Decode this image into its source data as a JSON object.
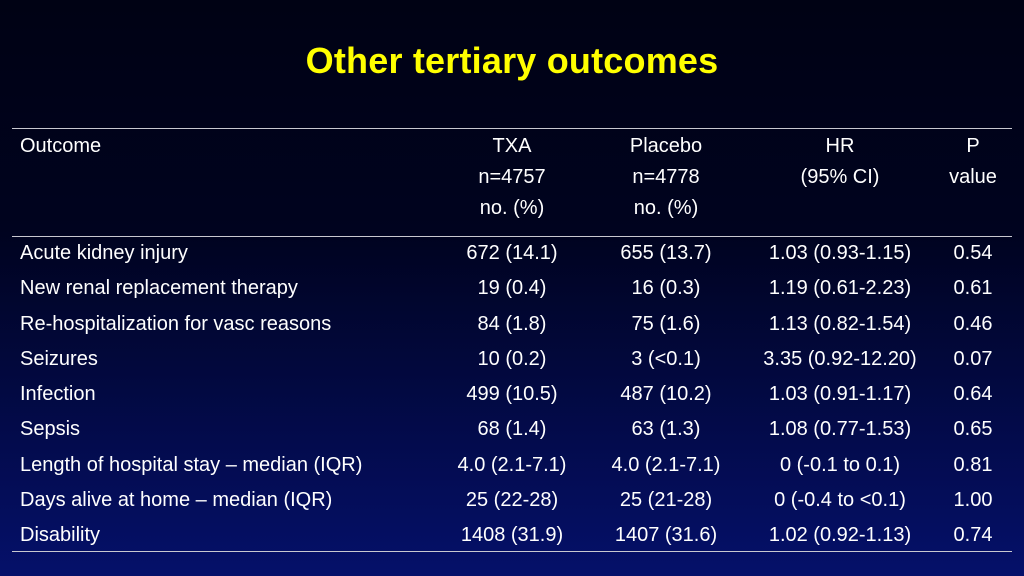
{
  "slide": {
    "title": "Other tertiary outcomes"
  },
  "table": {
    "headers": {
      "outcome": [
        "Outcome"
      ],
      "txa": [
        "TXA",
        "n=4757",
        "no. (%)"
      ],
      "placebo": [
        "Placebo",
        "n=4778",
        "no. (%)"
      ],
      "hr": [
        "HR",
        "(95% CI)"
      ],
      "p": [
        "P",
        "value"
      ]
    },
    "rows": [
      {
        "outcome": "Acute kidney injury",
        "txa": "672 (14.1)",
        "placebo": "655 (13.7)",
        "hr": "1.03 (0.93-1.15)",
        "p": "0.54"
      },
      {
        "outcome": "New renal replacement therapy",
        "txa": "19 (0.4)",
        "placebo": "16 (0.3)",
        "hr": "1.19 (0.61-2.23)",
        "p": "0.61"
      },
      {
        "outcome": "Re-hospitalization for vasc reasons",
        "txa": "84 (1.8)",
        "placebo": "75 (1.6)",
        "hr": "1.13 (0.82-1.54)",
        "p": "0.46"
      },
      {
        "outcome": "Seizures",
        "txa": "10 (0.2)",
        "placebo": "3 (<0.1)",
        "hr": "3.35 (0.92-12.20)",
        "p": "0.07"
      },
      {
        "outcome": "Infection",
        "txa": "499 (10.5)",
        "placebo": "487 (10.2)",
        "hr": "1.03 (0.91-1.17)",
        "p": "0.64"
      },
      {
        "outcome": "Sepsis",
        "txa": "68 (1.4)",
        "placebo": "63 (1.3)",
        "hr": "1.08 (0.77-1.53)",
        "p": "0.65"
      },
      {
        "outcome": "Length of hospital stay – median (IQR)",
        "txa": "4.0 (2.1-7.1)",
        "placebo": "4.0 (2.1-7.1)",
        "hr": "0 (-0.1 to 0.1)",
        "p": "0.81"
      },
      {
        "outcome": "Days alive at home – median (IQR)",
        "txa": "25 (22-28)",
        "placebo": "25 (21-28)",
        "hr": "0 (-0.4 to <0.1)",
        "p": "1.00"
      },
      {
        "outcome": "Disability",
        "txa": "1408 (31.9)",
        "placebo": "1407 (31.6)",
        "hr": "1.02 (0.92-1.13)",
        "p": "0.74"
      }
    ]
  },
  "colors": {
    "title": "#ffff00",
    "text": "#ffffff",
    "rule": "#c8c8d0",
    "background_top": "#000214",
    "background_bottom": "#05106a"
  }
}
